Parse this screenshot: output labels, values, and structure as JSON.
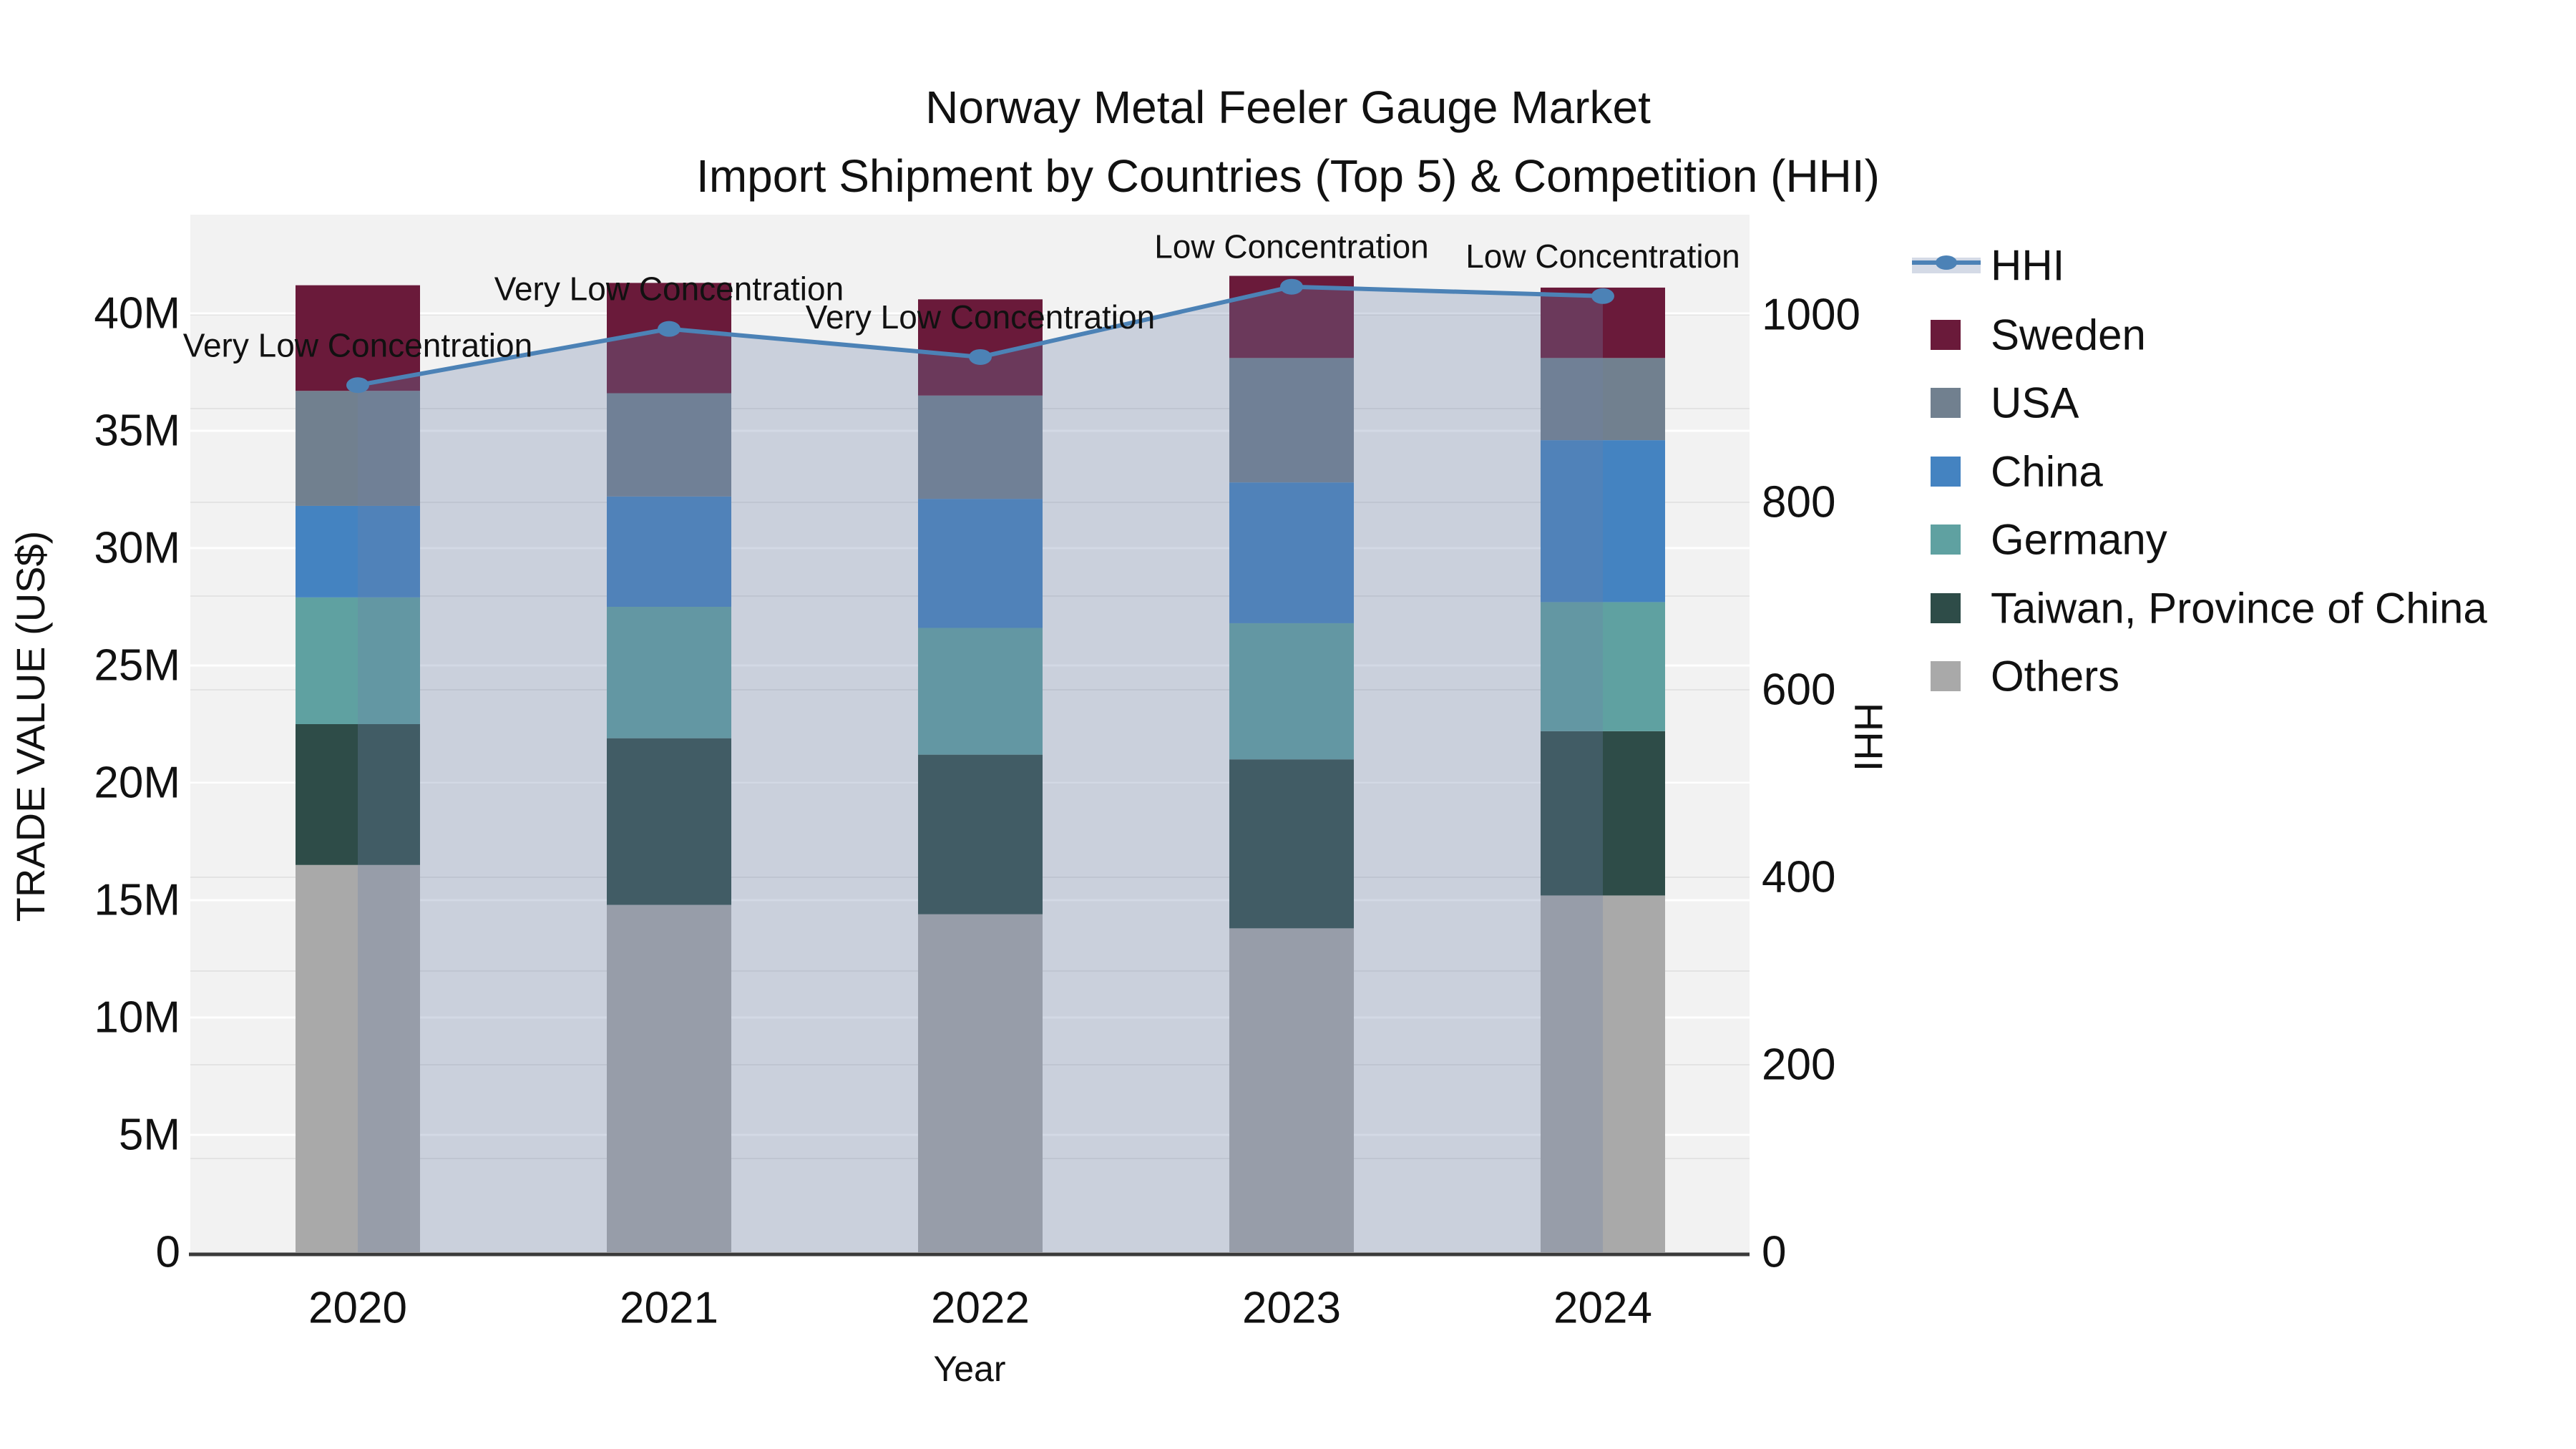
{
  "title": {
    "line1": "Norway Metal Feeler Gauge Market",
    "line2": "Import Shipment by Countries (Top 5) & Competition (HHI)"
  },
  "chart_data": {
    "type": "stacked-bar+line",
    "categories": [
      "2020",
      "2021",
      "2022",
      "2023",
      "2024"
    ],
    "xlabel": "Year",
    "ylabel_left": "TRADE VALUE (US$)",
    "ylabel_right": "HHI",
    "left_axis": {
      "tick_labels": [
        "0",
        "5M",
        "10M",
        "15M",
        "20M",
        "25M",
        "30M",
        "35M",
        "40M"
      ],
      "tick_values_millions": [
        0,
        5,
        10,
        15,
        20,
        25,
        30,
        35,
        40
      ],
      "range_millions": [
        0,
        44.2
      ],
      "grid": "on"
    },
    "right_axis": {
      "tick_labels": [
        "0",
        "200",
        "400",
        "600",
        "800",
        "1000"
      ],
      "tick_values": [
        0,
        200,
        400,
        600,
        800,
        1000
      ],
      "minor_grid_step": 100,
      "range": [
        0,
        1107
      ],
      "grid": "on"
    },
    "series": [
      {
        "name": "Others",
        "color": "#A9A9A9",
        "values_millions": [
          16.5,
          14.8,
          14.4,
          13.8,
          15.2
        ]
      },
      {
        "name": "Taiwan, Province of China",
        "color": "#2E4C48",
        "values_millions": [
          6.0,
          7.1,
          6.8,
          7.2,
          7.0
        ]
      },
      {
        "name": "Germany",
        "color": "#5FA1A1",
        "values_millions": [
          5.4,
          5.6,
          5.4,
          5.8,
          5.5
        ]
      },
      {
        "name": "China",
        "color": "#4483C1",
        "values_millions": [
          3.9,
          4.7,
          5.5,
          6.0,
          6.9
        ]
      },
      {
        "name": "USA",
        "color": "#71808F",
        "values_millions": [
          4.9,
          4.4,
          4.4,
          5.3,
          3.5
        ]
      },
      {
        "name": "Sweden",
        "color": "#6A1A3A",
        "values_millions": [
          4.5,
          4.7,
          4.1,
          3.5,
          3.0
        ]
      }
    ],
    "line_series": {
      "name": "HHI",
      "color": "#4C82B6",
      "area_fill_rgba": "rgba(109,130,170,0.30)",
      "values": [
        925,
        985,
        955,
        1030,
        1020
      ]
    },
    "annotations": [
      {
        "category": "2020",
        "text": "Very Low Concentration"
      },
      {
        "category": "2021",
        "text": "Very Low Concentration"
      },
      {
        "category": "2022",
        "text": "Very Low Concentration"
      },
      {
        "category": "2023",
        "text": "Low Concentration"
      },
      {
        "category": "2024",
        "text": "Low Concentration"
      }
    ],
    "layout": {
      "plot_bg": "#F2F2F2",
      "grid_color_major_left": "#FFFFFF",
      "grid_color_minor_right": "#E3E3E3",
      "axis_line_color": "#3A3A3A",
      "legend_position": "right",
      "legend_hhi_band_color": "#D4DAE6"
    }
  },
  "legend": {
    "items": [
      {
        "label": "HHI",
        "swatch": "line-marker-band",
        "color": "#4C82B6"
      },
      {
        "label": "Sweden",
        "swatch": "square",
        "color": "#6A1A3A"
      },
      {
        "label": "USA",
        "swatch": "square",
        "color": "#71808F"
      },
      {
        "label": "China",
        "swatch": "square",
        "color": "#4483C1"
      },
      {
        "label": "Germany",
        "swatch": "square",
        "color": "#5FA1A1"
      },
      {
        "label": "Taiwan, Province of China",
        "swatch": "square",
        "color": "#2E4C48"
      },
      {
        "label": "Others",
        "swatch": "square",
        "color": "#A9A9A9"
      }
    ]
  }
}
